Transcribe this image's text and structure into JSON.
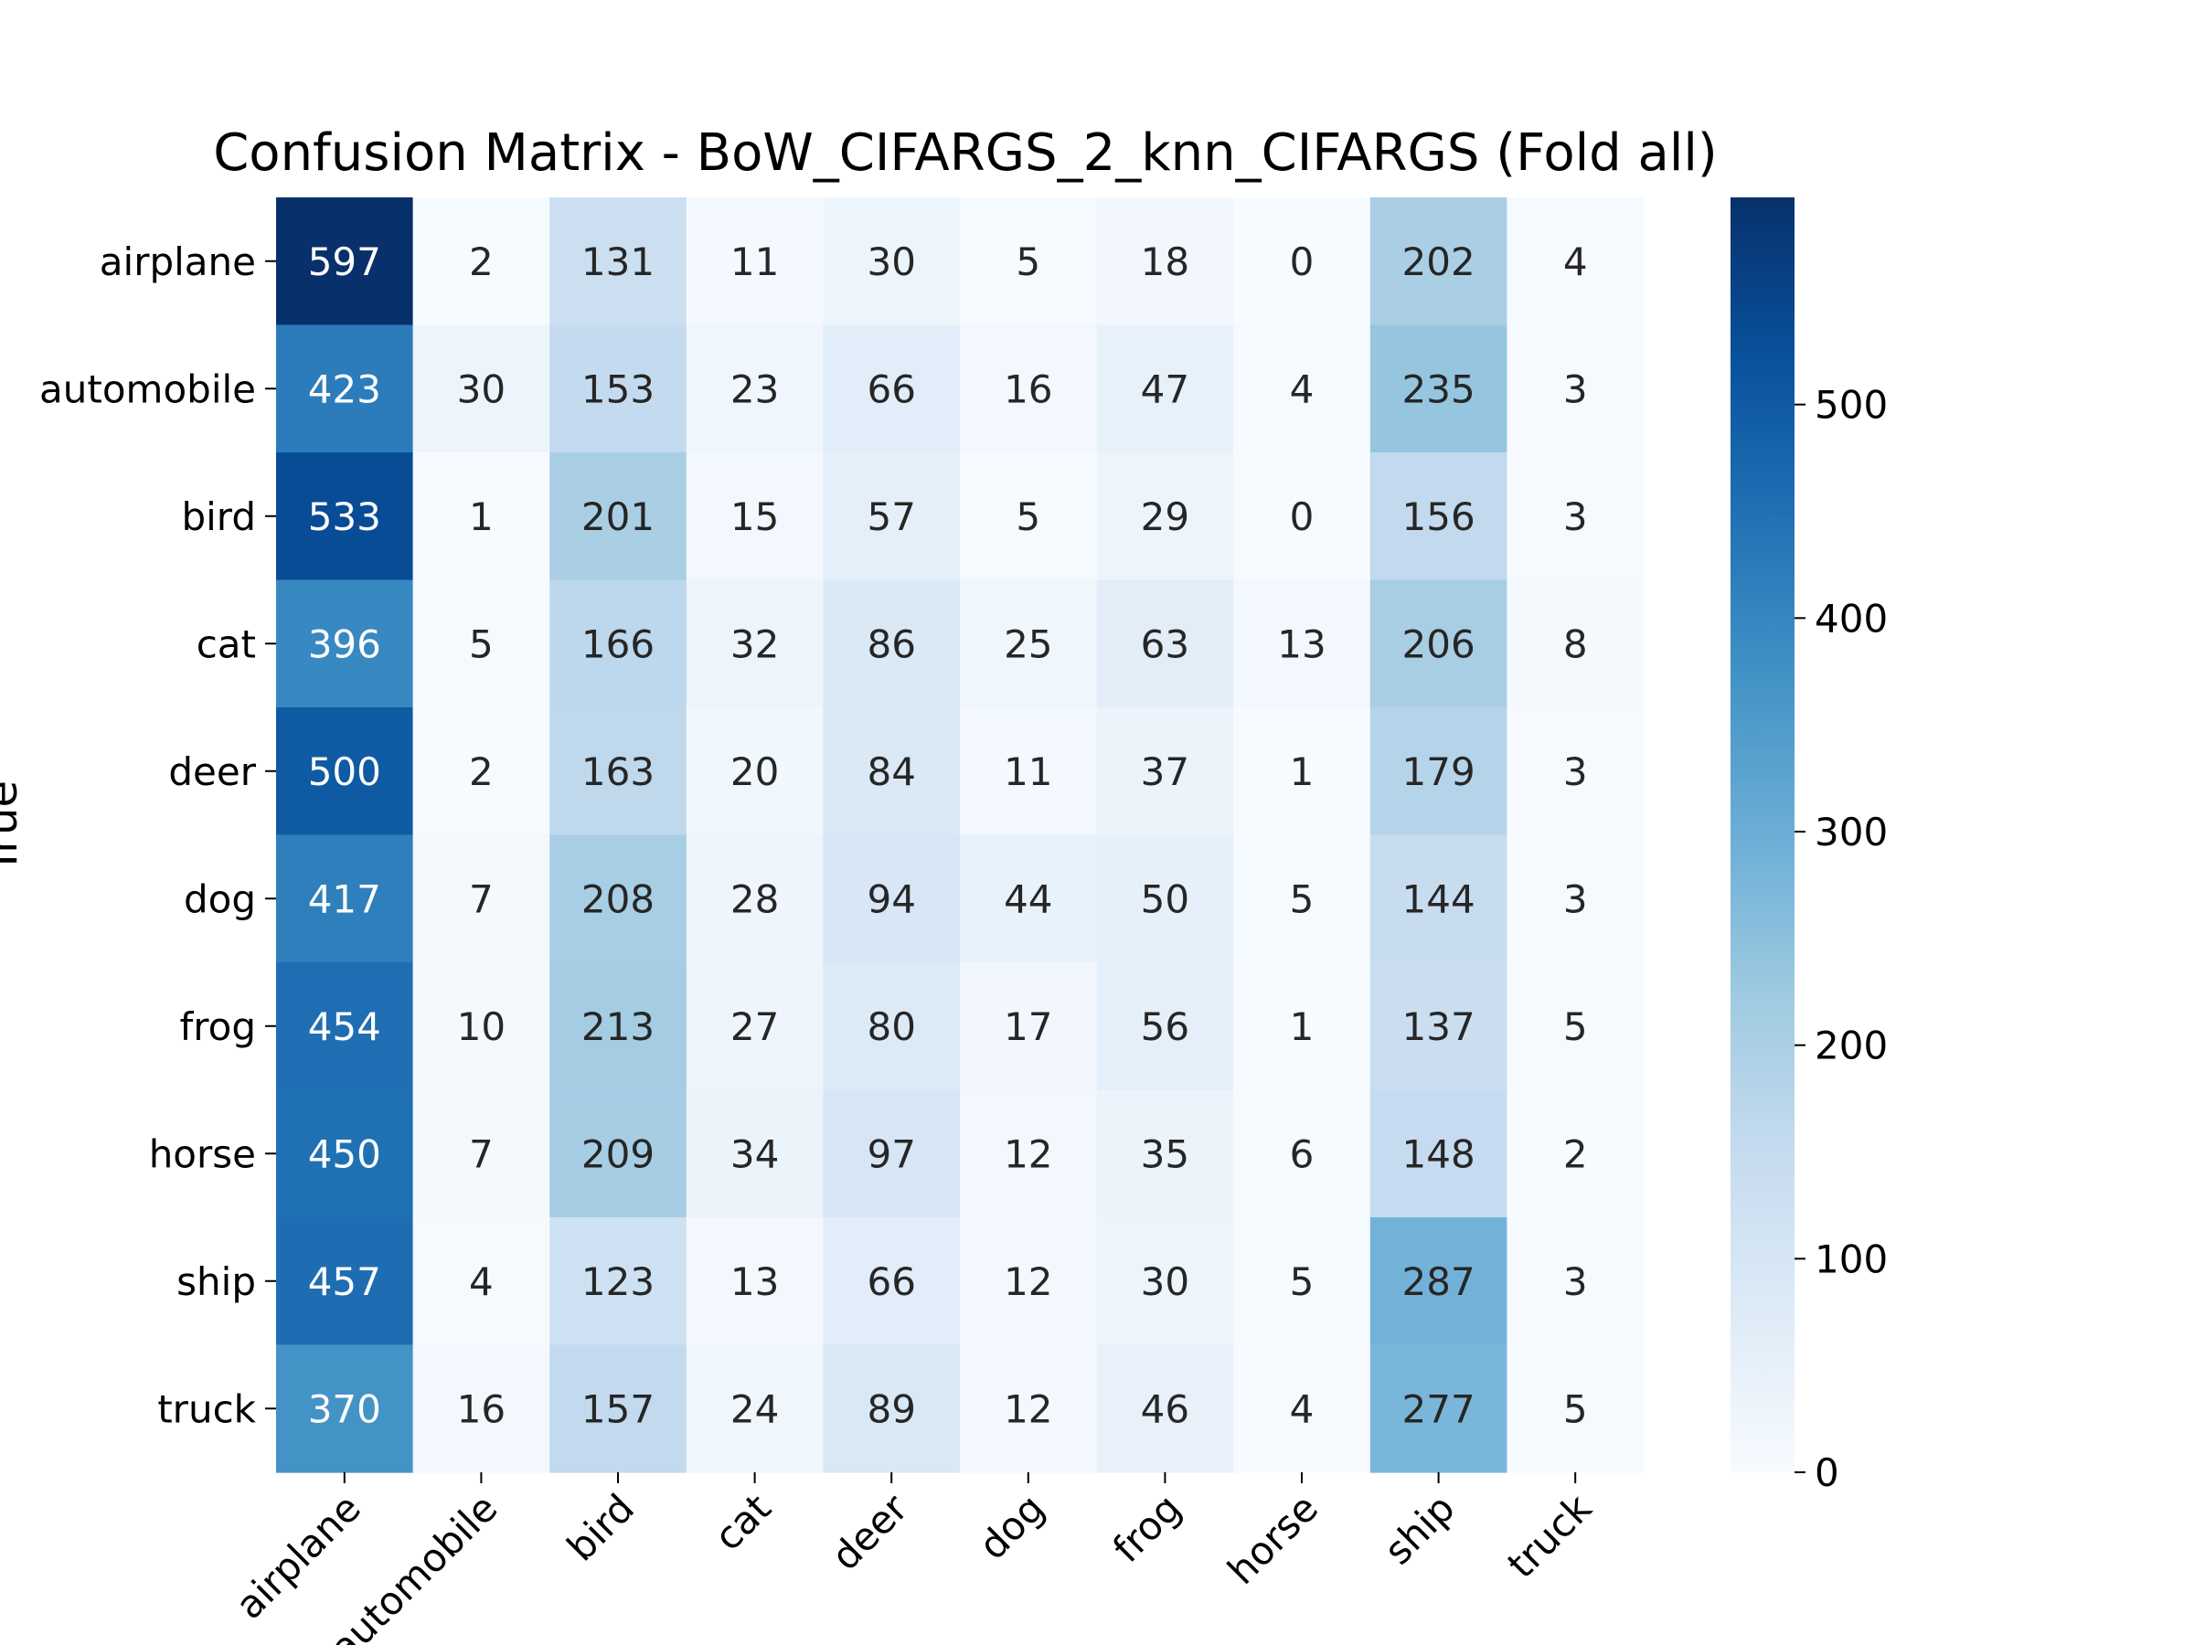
{
  "chart_data": {
    "type": "heatmap",
    "title": "Confusion Matrix - BoW_CIFARGS_2_knn_CIFARGS (Fold all)",
    "ylabel": "True",
    "xlabel": "",
    "row_labels": [
      "airplane",
      "automobile",
      "bird",
      "cat",
      "deer",
      "dog",
      "frog",
      "horse",
      "ship",
      "truck"
    ],
    "col_labels": [
      "airplane",
      "automobile",
      "bird",
      "cat",
      "deer",
      "dog",
      "frog",
      "horse",
      "ship",
      "truck"
    ],
    "values": [
      [
        597,
        2,
        131,
        11,
        30,
        5,
        18,
        0,
        202,
        4
      ],
      [
        423,
        30,
        153,
        23,
        66,
        16,
        47,
        4,
        235,
        3
      ],
      [
        533,
        1,
        201,
        15,
        57,
        5,
        29,
        0,
        156,
        3
      ],
      [
        396,
        5,
        166,
        32,
        86,
        25,
        63,
        13,
        206,
        8
      ],
      [
        500,
        2,
        163,
        20,
        84,
        11,
        37,
        1,
        179,
        3
      ],
      [
        417,
        7,
        208,
        28,
        94,
        44,
        50,
        5,
        144,
        3
      ],
      [
        454,
        10,
        213,
        27,
        80,
        17,
        56,
        1,
        137,
        5
      ],
      [
        450,
        7,
        209,
        34,
        97,
        12,
        35,
        6,
        148,
        2
      ],
      [
        457,
        4,
        123,
        13,
        66,
        12,
        30,
        5,
        287,
        3
      ],
      [
        370,
        16,
        157,
        24,
        89,
        12,
        46,
        4,
        277,
        5
      ]
    ],
    "colorbar": {
      "min": 0,
      "max": 597,
      "ticks": [
        0,
        100,
        200,
        300,
        400,
        500
      ],
      "colormap": "Blues"
    },
    "grid": false
  }
}
